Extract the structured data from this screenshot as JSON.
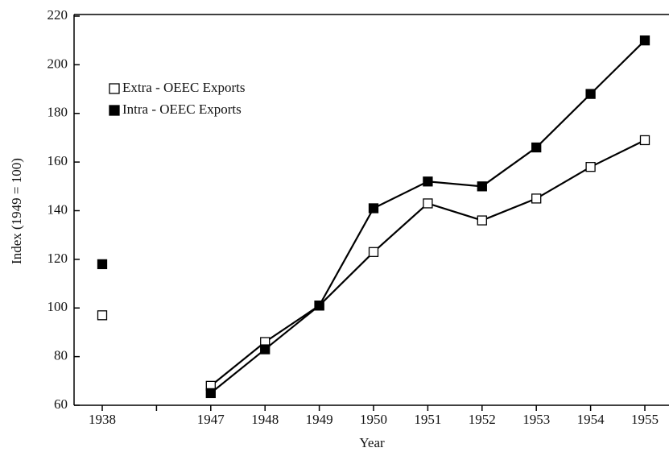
{
  "chart_data": {
    "type": "line",
    "x_label": "Year",
    "y_label": "Index (1949 = 100)",
    "categories": [
      "1938",
      null,
      "1947",
      "1948",
      "1949",
      "1950",
      "1951",
      "1952",
      "1953",
      "1954",
      "1955"
    ],
    "series": [
      {
        "name": "Extra - OEEC Exports",
        "color": "#000000",
        "marker_fill": "#ffffff",
        "values": [
          97,
          null,
          68,
          86,
          101,
          123,
          143,
          136,
          145,
          158,
          169
        ]
      },
      {
        "name": "Intra - OEEC Exports",
        "color": "#000000",
        "marker_fill": "#000000",
        "values": [
          118,
          null,
          65,
          83,
          101,
          141,
          152,
          150,
          166,
          188,
          210
        ]
      }
    ],
    "ylim": [
      60,
      220
    ],
    "yticks": [
      60,
      80,
      100,
      120,
      140,
      160,
      180,
      200,
      220
    ],
    "grid": false,
    "legend": "upper left"
  }
}
